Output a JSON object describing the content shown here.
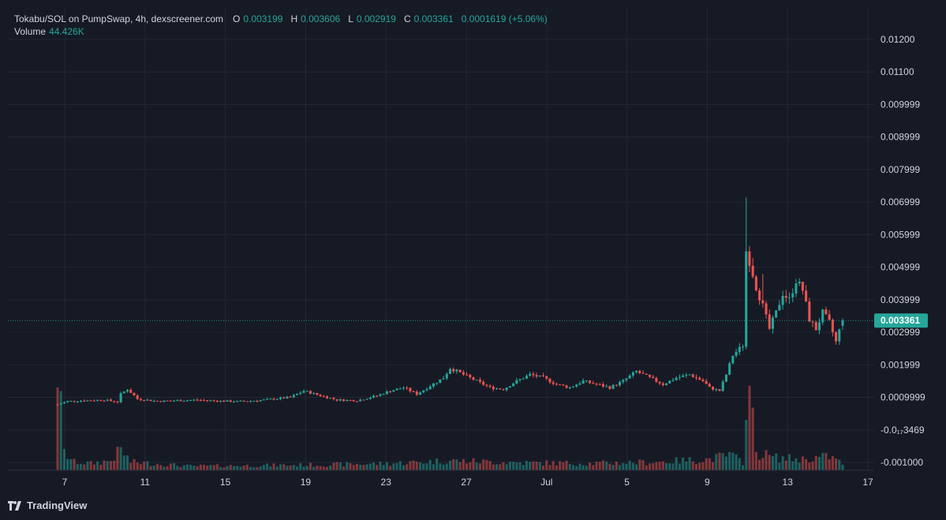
{
  "legend": {
    "symbol": "Tokabu/SOL on PumpSwap, 4h, dexscreener.com",
    "o_label": "O",
    "o_value": "0.003199",
    "h_label": "H",
    "h_value": "0.003606",
    "l_label": "L",
    "l_value": "0.002919",
    "c_label": "C",
    "c_value": "0.003361",
    "change": "0.0001619 (+5.06%)",
    "volume_label": "Volume",
    "volume_value": "44.426K"
  },
  "brand": {
    "name": "TradingView",
    "icon": "tradingview-logo-icon"
  },
  "colors": {
    "background": "#161a25",
    "grid": "#232733",
    "up": "#26a69a",
    "down": "#ef5350",
    "text": "#d1d4dc",
    "price_tag": "#26a69a"
  },
  "current_price_label": "0.003361",
  "chart_data": {
    "type": "candlestick",
    "interval": "4h",
    "y_ticks": [
      "0.01200",
      "0.01100",
      "0.009999",
      "0.008999",
      "0.007999",
      "0.006999",
      "0.005999",
      "0.004999",
      "0.003999",
      "0.002999",
      "0.001999",
      "0.0009999",
      "-0.0₁₇3469",
      "-0.001000"
    ],
    "x_ticks": [
      "7",
      "11",
      "15",
      "19",
      "23",
      "27",
      "Jul",
      "5",
      "9",
      "13",
      "17"
    ],
    "ylim": [
      -0.001,
      0.0125
    ],
    "grid": true,
    "price_path": [
      [
        0,
        0.00078
      ],
      [
        3,
        0.00088
      ],
      [
        8,
        0.0009
      ],
      [
        14,
        0.00092
      ],
      [
        18,
        0.00086
      ],
      [
        19,
        0.0011
      ],
      [
        21,
        0.00125
      ],
      [
        24,
        0.00095
      ],
      [
        30,
        0.00088
      ],
      [
        36,
        0.0009
      ],
      [
        42,
        0.00092
      ],
      [
        48,
        0.00089
      ],
      [
        54,
        0.00087
      ],
      [
        60,
        0.0009
      ],
      [
        66,
        0.00096
      ],
      [
        70,
        0.001
      ],
      [
        74,
        0.0012
      ],
      [
        78,
        0.00108
      ],
      [
        84,
        0.00092
      ],
      [
        90,
        0.0009
      ],
      [
        96,
        0.00105
      ],
      [
        100,
        0.0012
      ],
      [
        104,
        0.0013
      ],
      [
        108,
        0.0011
      ],
      [
        112,
        0.00135
      ],
      [
        116,
        0.0016
      ],
      [
        118,
        0.0019
      ],
      [
        122,
        0.0017
      ],
      [
        126,
        0.0015
      ],
      [
        130,
        0.0013
      ],
      [
        134,
        0.00125
      ],
      [
        138,
        0.0015
      ],
      [
        142,
        0.0017
      ],
      [
        146,
        0.0016
      ],
      [
        150,
        0.0014
      ],
      [
        154,
        0.0013
      ],
      [
        158,
        0.0015
      ],
      [
        162,
        0.0014
      ],
      [
        166,
        0.0013
      ],
      [
        170,
        0.0015
      ],
      [
        174,
        0.0018
      ],
      [
        178,
        0.0016
      ],
      [
        182,
        0.0014
      ],
      [
        186,
        0.0016
      ],
      [
        190,
        0.0017
      ],
      [
        194,
        0.0015
      ],
      [
        196,
        0.0013
      ],
      [
        199,
        0.0012
      ],
      [
        201,
        0.0017
      ],
      [
        203,
        0.0023
      ],
      [
        206,
        0.0026
      ],
      [
        207,
        0.0055
      ],
      [
        208,
        0.0052
      ],
      [
        210,
        0.0044
      ],
      [
        212,
        0.0038
      ],
      [
        214,
        0.0031
      ],
      [
        216,
        0.0036
      ],
      [
        218,
        0.0042
      ],
      [
        220,
        0.004
      ],
      [
        222,
        0.0046
      ],
      [
        224,
        0.0043
      ],
      [
        226,
        0.0034
      ],
      [
        228,
        0.0031
      ],
      [
        230,
        0.0036
      ],
      [
        232,
        0.0033
      ],
      [
        234,
        0.0027
      ],
      [
        236,
        0.0034
      ]
    ],
    "volume_path": [
      [
        0,
        0.0015
      ],
      [
        2,
        0.00025
      ],
      [
        5,
        0.00012
      ],
      [
        10,
        0.0001
      ],
      [
        16,
        0.00014
      ],
      [
        19,
        0.0003
      ],
      [
        22,
        0.00012
      ],
      [
        40,
        6e-05
      ],
      [
        60,
        7e-05
      ],
      [
        80,
        8e-05
      ],
      [
        100,
        0.0001
      ],
      [
        118,
        0.00014
      ],
      [
        140,
        0.00011
      ],
      [
        160,
        0.0001
      ],
      [
        180,
        0.00012
      ],
      [
        196,
        0.00016
      ],
      [
        202,
        0.00022
      ],
      [
        206,
        0.00012
      ],
      [
        207,
        0.0011
      ],
      [
        208,
        0.0011
      ],
      [
        210,
        0.00026
      ],
      [
        216,
        0.00018
      ],
      [
        224,
        0.00016
      ],
      [
        232,
        0.0002
      ],
      [
        236,
        0.0001
      ]
    ],
    "last": {
      "open": 0.003199,
      "high": 0.003606,
      "low": 0.002919,
      "close": 0.003361,
      "volume": "44.426K"
    }
  }
}
